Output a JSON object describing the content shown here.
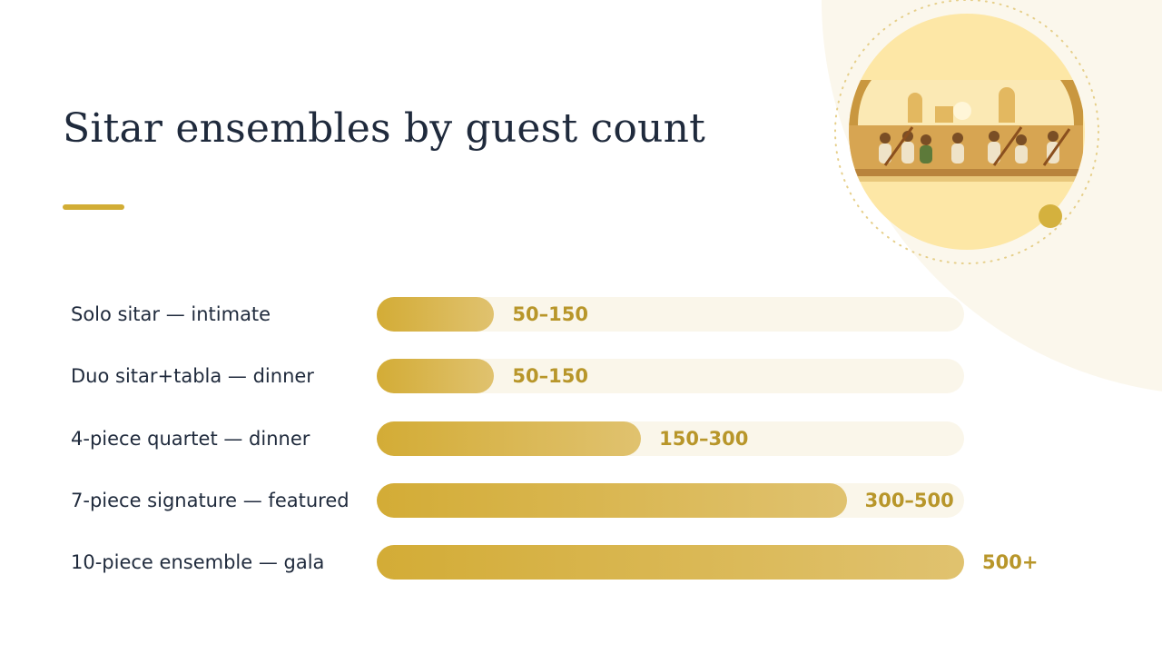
{
  "chart_data": {
    "type": "bar",
    "orientation": "horizontal",
    "title": "Sitar ensembles by guest count",
    "categories": [
      "Solo sitar — intimate",
      "Duo sitar+tabla — dinner",
      "4-piece quartet — dinner",
      "7-piece signature — featured",
      "10-piece ensemble — gala"
    ],
    "values": [
      100,
      100,
      225,
      400,
      500
    ],
    "value_labels": [
      "50–150",
      "50–150",
      "150–300",
      "300–500",
      "500+"
    ],
    "xlim": [
      0,
      500
    ],
    "color": "#d3ac36"
  }
}
